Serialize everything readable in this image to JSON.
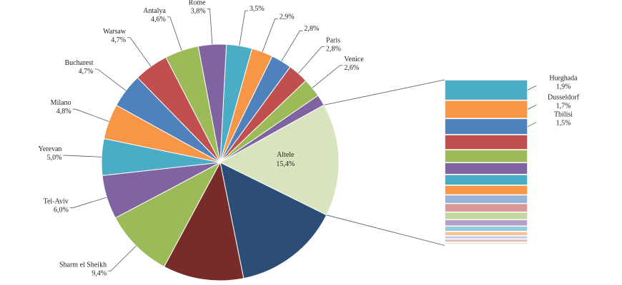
{
  "chart_data": {
    "type": "pie",
    "categories": [
      null,
      null,
      null,
      "Paris",
      "Venice",
      null,
      "Altele",
      null,
      null,
      "Sharm el Sheikh",
      "Tel-Aviv",
      "Yerevan",
      "Milano",
      "Bucharest",
      "Warsaw",
      "Antalya",
      "Rome"
    ],
    "values": [
      3.5,
      2.9,
      2.8,
      2.8,
      2.6,
      1.5,
      15.4,
      14.5,
      11.0,
      9.4,
      6.0,
      5.0,
      4.8,
      4.7,
      4.7,
      4.6,
      3.8
    ],
    "value_labels": [
      "3,5%",
      "2,9%",
      "2,8%",
      "2,8%",
      "2,6%",
      null,
      "15,4%",
      null,
      null,
      "9,4%",
      "6,0%",
      "5,0%",
      "4,8%",
      "4,7%",
      "4,7%",
      "4,6%",
      "3,8%"
    ],
    "colors": [
      "#4bacc6",
      "#f79646",
      "#4f81bd",
      "#c0504d",
      "#9bbb59",
      "#8064a2",
      "#d7e4bd",
      "#2c4d75",
      "#772c2a",
      "#9bbb59",
      "#8064a2",
      "#4bacc6",
      "#f79646",
      "#4f81bd",
      "#c0504d",
      "#9bbb59",
      "#8064a2"
    ],
    "breakout": {
      "categories": [
        "Hurghada",
        "Dusseldorf",
        "Tbilisi",
        null,
        null,
        null,
        null,
        null,
        null,
        null,
        null,
        null,
        null,
        null,
        null,
        null,
        null,
        null
      ],
      "values": [
        1.9,
        1.7,
        1.5,
        1.4,
        1.2,
        1.1,
        1.0,
        0.9,
        0.8,
        0.8,
        0.7,
        0.6,
        0.5,
        0.4,
        0.3,
        0.3,
        0.2,
        0.1
      ],
      "value_labels": [
        "1,9%",
        "1,7%",
        "1,5%",
        null,
        null,
        null,
        null,
        null,
        null,
        null,
        null,
        null,
        null,
        null,
        null,
        null,
        null,
        null
      ],
      "colors": [
        "#4bacc6",
        "#f79646",
        "#4f81bd",
        "#c0504d",
        "#9bbb59",
        "#8064a2",
        "#4bacc6",
        "#f79646",
        "#95b3d7",
        "#d99694",
        "#c3d69b",
        "#b3a2c7",
        "#93cddd",
        "#fac090",
        "#b9cde5",
        "#e6b9b8",
        "#d7e4bd",
        "#ccc1da"
      ]
    }
  }
}
